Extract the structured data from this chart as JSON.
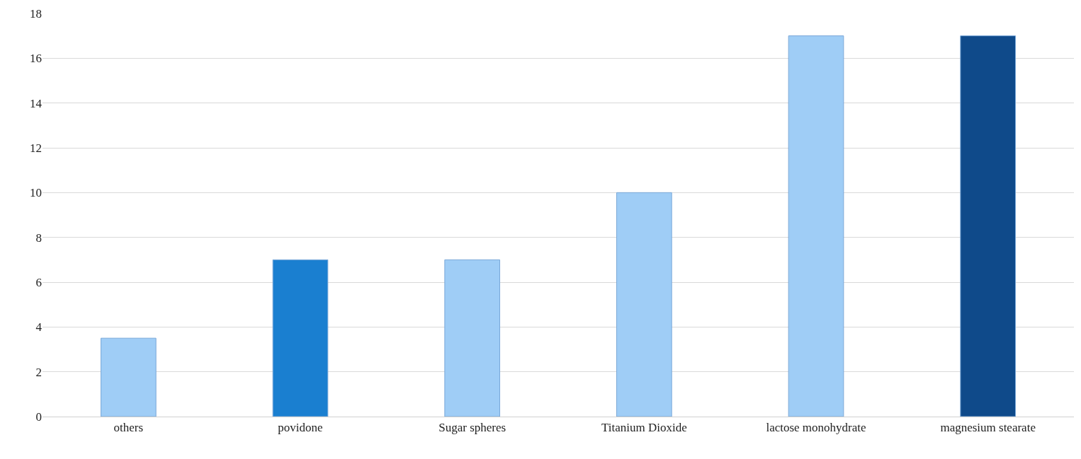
{
  "chart_data": {
    "type": "bar",
    "categories": [
      "others",
      "povidone",
      "Sugar spheres",
      "Titanium Dioxide",
      "lactose monohydrate",
      "magnesium stearate"
    ],
    "values": [
      3.5,
      7,
      7,
      10,
      17,
      17
    ],
    "colors": [
      "#9fcdf6",
      "#1a7fd0",
      "#9fcdf6",
      "#9fcdf6",
      "#9fcdf6",
      "#0f4a8a"
    ],
    "ylim": [
      0,
      18
    ],
    "yticks": [
      0,
      2,
      4,
      6,
      8,
      10,
      12,
      14,
      16,
      18
    ],
    "grid": "y"
  }
}
